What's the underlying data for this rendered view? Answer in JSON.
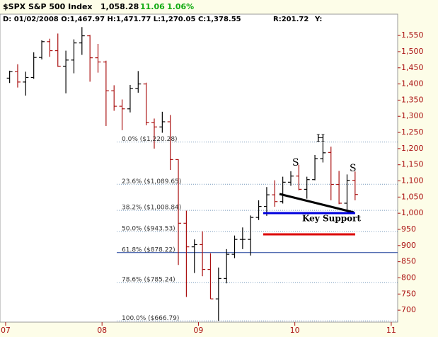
{
  "chart_data": {
    "type": "ohlc",
    "title": "$SPX S&P 500 Index",
    "last": "1,058.28",
    "change": "11.06",
    "change_pct": "1.06%",
    "info": "D: 01/02/2008 O:1,467.97 H:1,471.77 L:1,270.05 C:1,378.55",
    "range_text": "R:201.72",
    "y_text": "Y:",
    "up_color": "#000000",
    "down_color": "#aa1111",
    "x": [
      0,
      1,
      2,
      3,
      4,
      5,
      6,
      7,
      8,
      9,
      10,
      11,
      12,
      13,
      14,
      15,
      16,
      17,
      18,
      19,
      20,
      21,
      22,
      23,
      24,
      25,
      26,
      27,
      28,
      29,
      30,
      31,
      32,
      33,
      34,
      35,
      36,
      37,
      38,
      39,
      40,
      41,
      42,
      43
    ],
    "open": [
      1418,
      1438,
      1406,
      1420,
      1482,
      1531,
      1503,
      1455,
      1474,
      1527,
      1549,
      1481,
      1468,
      1379,
      1331,
      1323,
      1386,
      1400,
      1280,
      1267,
      1283,
      1166,
      969,
      896,
      903,
      826,
      735,
      798,
      873,
      919,
      919,
      987,
      1021,
      1057,
      1036,
      1096,
      1115,
      1074,
      1104,
      1169,
      1188,
      1089,
      1031,
      1102
    ],
    "high": [
      1441,
      1461,
      1438,
      1498,
      1535,
      1540,
      1556,
      1503,
      1538,
      1576,
      1552,
      1524,
      1472,
      1396,
      1352,
      1397,
      1440,
      1404,
      1293,
      1314,
      1304,
      1167,
      1008,
      919,
      944,
      876,
      832,
      889,
      931,
      956,
      993,
      1040,
      1081,
      1102,
      1113,
      1130,
      1150,
      1113,
      1180,
      1220,
      1206,
      1131,
      1120,
      1129
    ],
    "low": [
      1403,
      1389,
      1364,
      1416,
      1476,
      1484,
      1453,
      1371,
      1433,
      1490,
      1407,
      1435,
      1270,
      1317,
      1257,
      1312,
      1373,
      1272,
      1200,
      1249,
      1134,
      840,
      741,
      815,
      805,
      735,
      667,
      783,
      861,
      889,
      869,
      979,
      992,
      1020,
      1030,
      1085,
      1071,
      1045,
      1102,
      1157,
      1040,
      1028,
      1011,
      1040
    ],
    "close": [
      1438,
      1406,
      1420,
      1482,
      1531,
      1503,
      1455,
      1474,
      1527,
      1549,
      1481,
      1468,
      1379,
      1331,
      1323,
      1386,
      1400,
      1280,
      1267,
      1283,
      1166,
      969,
      896,
      903,
      826,
      735,
      798,
      873,
      919,
      919,
      987,
      1021,
      1057,
      1036,
      1096,
      1115,
      1074,
      1104,
      1169,
      1187,
      1089,
      1031,
      1102,
      1058
    ],
    "xlim": [
      -1.2,
      48.3
    ],
    "xticks": [
      {
        "value": -0.5,
        "label": "07"
      },
      {
        "value": 11.5,
        "label": "08"
      },
      {
        "value": 23.5,
        "label": "09"
      },
      {
        "value": 35.5,
        "label": "10"
      },
      {
        "value": 47.5,
        "label": "11"
      }
    ],
    "ylim": [
      663,
      1616
    ],
    "yticks": [
      700,
      750,
      800,
      850,
      900,
      950,
      {
        "value": 1000,
        "label": "1,000"
      },
      {
        "value": 1050,
        "label": "1,050"
      },
      {
        "value": 1100,
        "label": "1,100"
      },
      {
        "value": 1150,
        "label": "1,150"
      },
      {
        "value": 1200,
        "label": "1,200"
      },
      {
        "value": 1250,
        "label": "1,250"
      },
      {
        "value": 1300,
        "label": "1,300"
      },
      {
        "value": 1350,
        "label": "1,350"
      },
      {
        "value": 1400,
        "label": "1,400"
      },
      {
        "value": 1450,
        "label": "1,450"
      },
      {
        "value": 1500,
        "label": "1,500"
      },
      {
        "value": 1550,
        "label": "1,550"
      }
    ],
    "fib_levels": [
      {
        "label": "0.0% ($1,220.28)",
        "value": 1220.28,
        "color": "#7799bb"
      },
      {
        "label": "23.6% ($1,089.65)",
        "value": 1089.65,
        "color": "#7799bb"
      },
      {
        "label": "38.2% ($1,008.84)",
        "value": 1008.84,
        "color": "#7799bb"
      },
      {
        "label": "50.0% ($943.53)",
        "value": 943.53,
        "color": "#7799bb"
      },
      {
        "label": "61.8% ($878.22)",
        "value": 878.22,
        "color": "#1a3d99"
      },
      {
        "label": "78.6% ($785.24)",
        "value": 785.24,
        "color": "#7799bb"
      },
      {
        "label": "100.0% ($666.79)",
        "value": 666.79,
        "color": "#7799bb"
      }
    ],
    "annotations": [
      "S",
      "H",
      "S",
      "Key Support"
    ]
  }
}
